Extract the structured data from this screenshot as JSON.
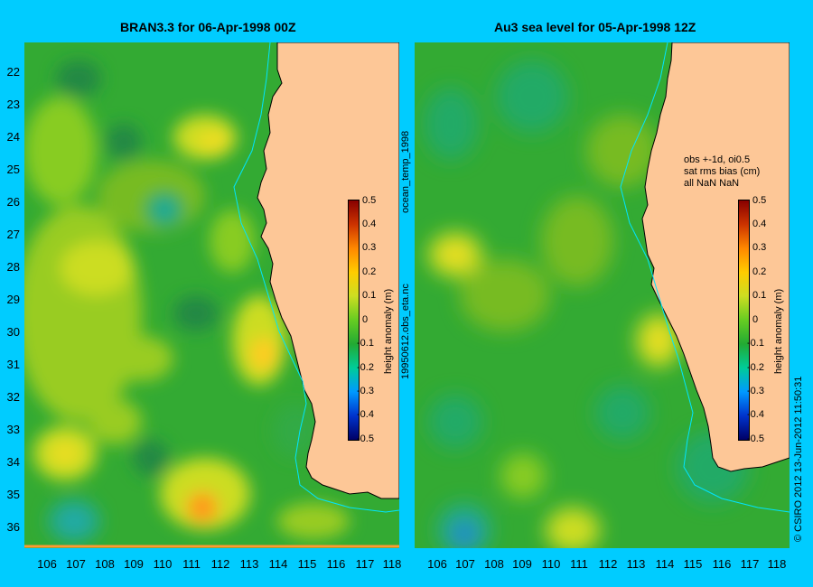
{
  "left_panel": {
    "title": "BRAN3.3 for 06-Apr-1998 00Z"
  },
  "right_panel": {
    "title": "Au3 sea level  for 05-Apr-1998 12Z",
    "note_lines": [
      "obs +-1d, oi0.5",
      "sat rms bias (cm)",
      "all NaN NaN"
    ]
  },
  "y_ticks": [
    "22",
    "23",
    "24",
    "25",
    "26",
    "27",
    "28",
    "29",
    "30",
    "31",
    "32",
    "33",
    "34",
    "35",
    "36"
  ],
  "x_ticks": [
    "106",
    "107",
    "108",
    "109",
    "110",
    "111",
    "112",
    "113",
    "114",
    "115",
    "116",
    "117",
    "118"
  ],
  "colorbar": {
    "label": "height anomaly (m)",
    "ticks": [
      "0.5",
      "0.4",
      "0.3",
      "0.2",
      "0.1",
      "0",
      "-0.1",
      "-0.2",
      "-0.3",
      "-0.4",
      "-0.5"
    ],
    "colors": [
      "#000066",
      "#0033cc",
      "#0099ff",
      "#00cc99",
      "#22aa33",
      "#66cc22",
      "#ccdd22",
      "#ffcc00",
      "#ff8800",
      "#cc3300",
      "#880000"
    ]
  },
  "side_labels": {
    "middle_top": "ocean_temp_1998",
    "middle_bottom": "19950612.obs_eta.nc",
    "right_edge": "© CSIRO 2012   13-Jun-2012 11:50:31"
  },
  "colors": {
    "background": "#00ccff",
    "land": "#fdc797",
    "coast_line": "#00e5ff"
  }
}
